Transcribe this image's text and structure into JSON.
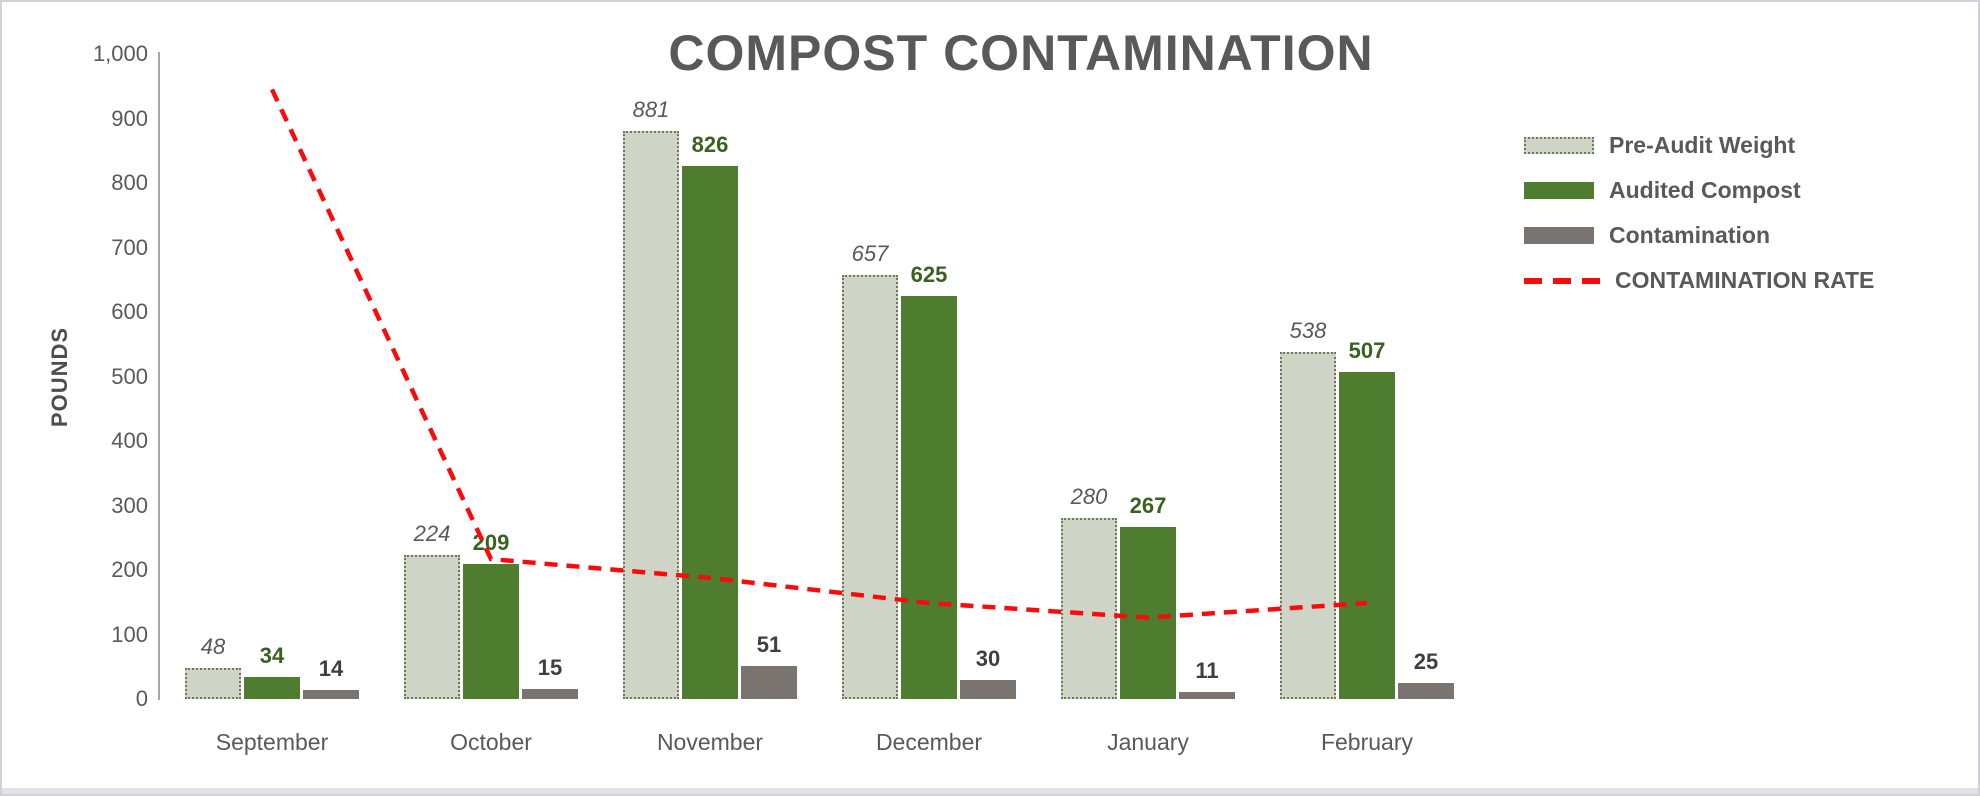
{
  "chart_data": {
    "type": "bar",
    "subtype": "clustered-columns-with-dashed-line-overlay",
    "title": "COMPOST CONTAMINATION",
    "ylabel": "POUNDS",
    "xlabel": "",
    "categories": [
      "September",
      "October",
      "November",
      "December",
      "January",
      "February"
    ],
    "series": [
      {
        "name": "Pre-Audit Weight",
        "values": [
          48,
          224,
          881,
          657,
          280,
          538
        ],
        "fill_color": "#cfd5c6",
        "border_style": "dotted",
        "border_color": "#6b7a52",
        "value_label_style": "italic-gray"
      },
      {
        "name": "Audited Compost",
        "values": [
          34,
          209,
          826,
          625,
          267,
          507
        ],
        "fill_color": "#4f7d2f",
        "value_label_style": "bold-green"
      },
      {
        "name": "Contamination",
        "values": [
          14,
          15,
          51,
          30,
          11,
          25
        ],
        "fill_color": "#7a7470",
        "value_label_style": "bold-darkgray"
      }
    ],
    "line_series": {
      "name": "CONTAMINATION RATE",
      "style": "dashed",
      "color": "#fa0b0b",
      "values_pct": [
        29.2,
        6.7,
        5.8,
        4.6,
        3.9,
        4.6
      ]
    },
    "y_axis": {
      "min": 0,
      "max": 1000,
      "tick_interval": 100,
      "tick_values": [
        1000,
        900,
        800,
        700,
        600,
        500,
        400,
        300,
        200,
        100,
        0
      ],
      "tick_labels": [
        "1,000",
        "900",
        "800",
        "700",
        "600",
        "500",
        "400",
        "300",
        "200",
        "100",
        "0"
      ],
      "gridlines": false
    },
    "secondary_axis": {
      "visible": false,
      "min_pct": 0,
      "max_pct": 30.8
    },
    "legend": {
      "position": "right",
      "items": [
        {
          "label": "Pre-Audit Weight",
          "swatch": "box-dotted",
          "color": "#cfd5c6",
          "border_color": "#6b7a52"
        },
        {
          "label": "Audited Compost",
          "swatch": "box",
          "color": "#4f7d2f"
        },
        {
          "label": "Contamination",
          "swatch": "box",
          "color": "#7a7470"
        },
        {
          "label": "CONTAMINATION RATE",
          "swatch": "dashes",
          "color": "#fa0b0b"
        }
      ]
    },
    "text_colors": {
      "title": "#595959",
      "axis_ticks": "#595959",
      "pre_audit_labels": "#595959",
      "audited_labels": "#3b6121",
      "contamination_labels": "#3f3f3f"
    }
  }
}
